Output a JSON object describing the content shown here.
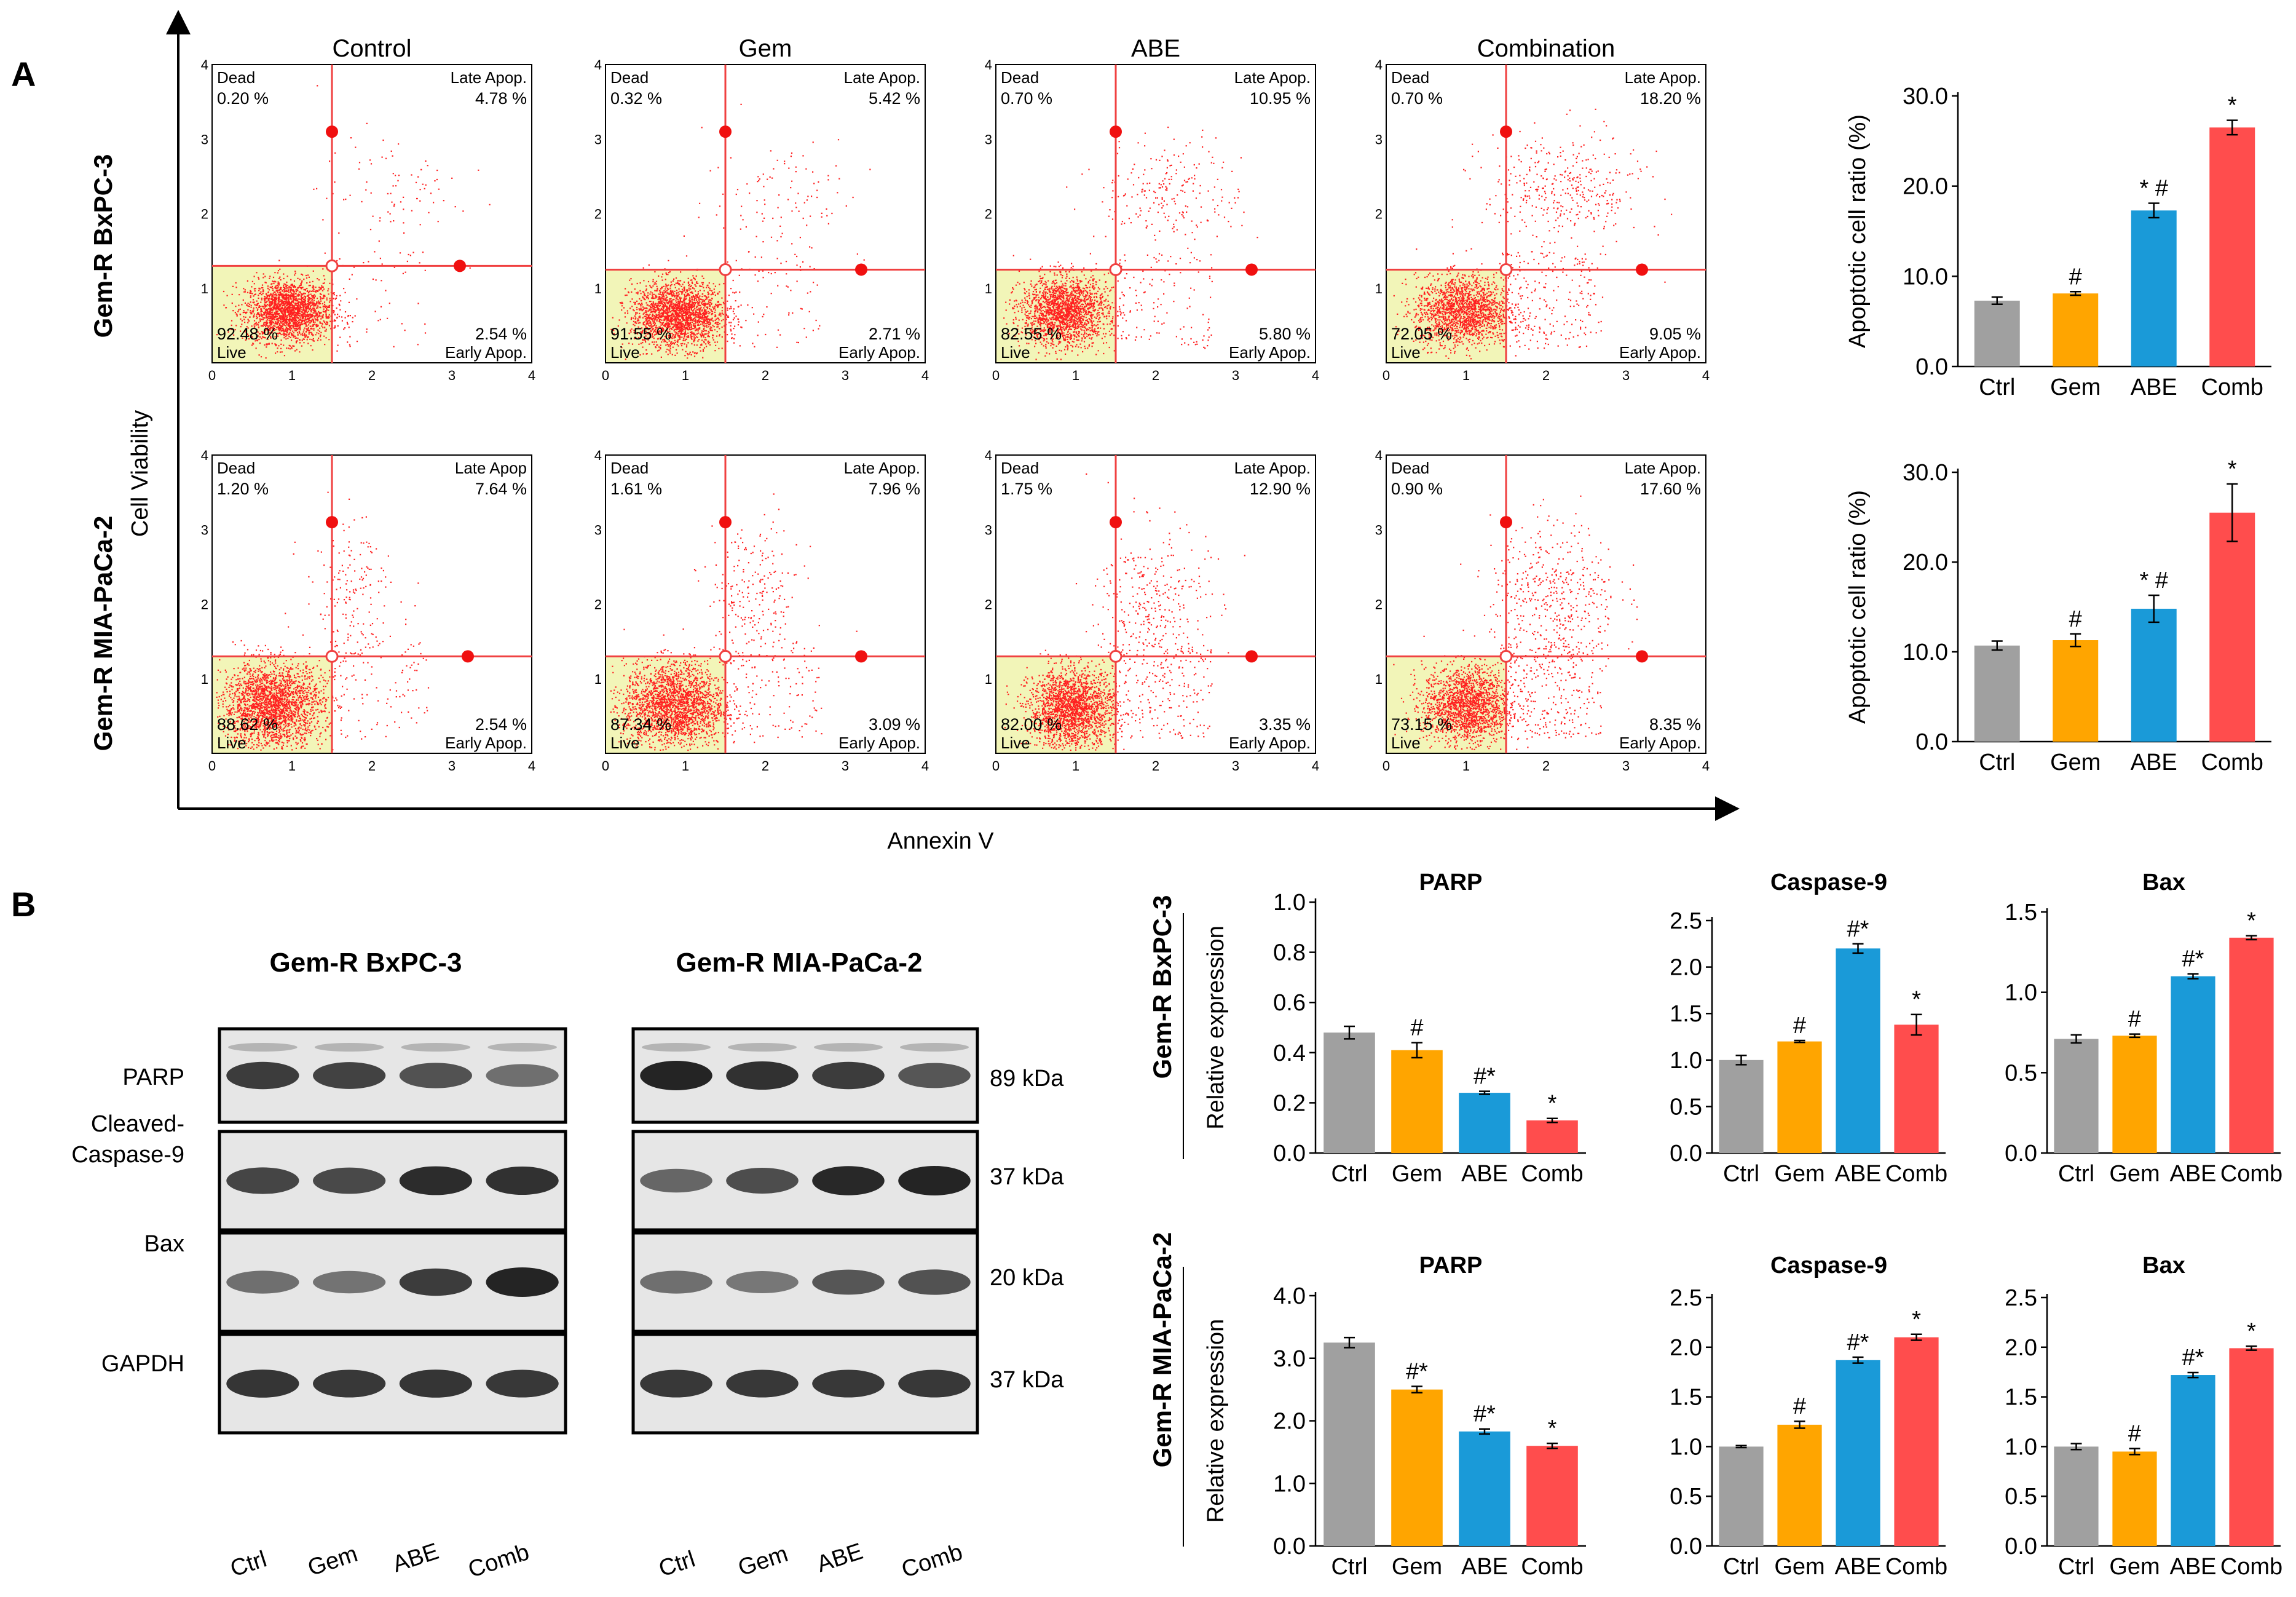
{
  "panel_a": {
    "letter": "A",
    "y_axis_label": "Cell Viability",
    "x_axis_label": "Annexin V",
    "row_labels": [
      "Gem-R BxPC-3",
      "Gem-R MIA-PaCa-2"
    ],
    "treatments": [
      "Control",
      "Gem",
      "ABE",
      "Combination"
    ],
    "axis_ticks": [
      "0",
      "1",
      "2",
      "3",
      "4"
    ],
    "quadrant_names": {
      "dead": "Dead",
      "late": "Late Apop.",
      "late_alt": "Late Apop",
      "live": "Live",
      "early": "Early Apop."
    },
    "color_points": "#ff2020",
    "color_live_gate": "#f2f5b8"
  },
  "panel_b": {
    "letter": "B",
    "blot_groups": [
      "Gem-R BxPC-3",
      "Gem-R MIA-PaCa-2"
    ],
    "proteins": [
      "PARP",
      "Cleaved-",
      "Caspase-9",
      "Bax",
      "GAPDH"
    ],
    "kda": [
      "89 kDa",
      "37 kDa",
      "20 kDa",
      "37 kDa"
    ],
    "lanes": [
      "Ctrl",
      "Gem",
      "ABE",
      "Comb"
    ],
    "band_intensity": {
      "left": [
        [
          0.85,
          0.82,
          0.72,
          0.55
        ],
        [
          0.8,
          0.78,
          0.95,
          0.92
        ],
        [
          0.55,
          0.52,
          0.85,
          1.0
        ],
        [
          0.9,
          0.88,
          0.9,
          0.88
        ]
      ],
      "right": [
        [
          1.0,
          0.92,
          0.85,
          0.7
        ],
        [
          0.6,
          0.75,
          0.98,
          1.0
        ],
        [
          0.55,
          0.5,
          0.7,
          0.72
        ],
        [
          0.88,
          0.88,
          0.88,
          0.88
        ]
      ]
    },
    "row_labels": [
      "Gem-R BxPC-3",
      "Gem-R MIA-PaCa-2"
    ]
  },
  "chart_data": [
    {
      "type": "scatter",
      "title": "Control",
      "cell_line": "Gem-R BxPC-3",
      "xlabel": "Annexin V",
      "ylabel": "Cell Viability",
      "xlim": [
        0,
        4
      ],
      "ylim": [
        0,
        4
      ],
      "quadrants": {
        "dead": "0.20 %",
        "late": "4.78 %",
        "live": "92.48 %",
        "early": "2.54 %"
      },
      "gate": [
        1.5,
        1.3
      ],
      "handles": [
        [
          1.5,
          3.1
        ],
        [
          3.1,
          1.3
        ]
      ],
      "cluster": [
        0.95,
        0.7,
        2100,
        0.6,
        0.16
      ],
      "scatter_up": [
        2.2,
        2.3,
        0.45,
        0.4
      ],
      "scatter_upcount": 90
    },
    {
      "type": "scatter",
      "title": "Gem",
      "cell_line": "Gem-R BxPC-3",
      "xlabel": "Annexin V",
      "ylabel": "Cell Viability",
      "xlim": [
        0,
        4
      ],
      "ylim": [
        0,
        4
      ],
      "quadrants": {
        "dead": "0.32 %",
        "late": "5.42 %",
        "live": "91.55 %",
        "early": "2.71 %"
      },
      "gate": [
        1.5,
        1.25
      ],
      "handles": [
        [
          1.5,
          3.1
        ],
        [
          3.2,
          1.25
        ]
      ],
      "cluster": [
        0.9,
        0.65,
        2100,
        0.65,
        0.17
      ],
      "scatter_up": [
        2.25,
        2.2,
        0.5,
        0.45
      ],
      "scatter_upcount": 110
    },
    {
      "type": "scatter",
      "title": "ABE",
      "cell_line": "Gem-R BxPC-3",
      "xlabel": "Annexin V",
      "ylabel": "Cell Viability",
      "xlim": [
        0,
        4
      ],
      "ylim": [
        0,
        4
      ],
      "quadrants": {
        "dead": "0.70 %",
        "late": "10.95 %",
        "live": "82.55 %",
        "early": "5.80 %"
      },
      "gate": [
        1.5,
        1.25
      ],
      "handles": [
        [
          1.5,
          3.1
        ],
        [
          3.2,
          1.25
        ]
      ],
      "cluster": [
        0.85,
        0.7,
        1900,
        0.6,
        0.18
      ],
      "scatter_up": [
        2.2,
        2.3,
        0.45,
        0.35
      ],
      "scatter_upcount": 220
    },
    {
      "type": "scatter",
      "title": "Combination",
      "cell_line": "Gem-R BxPC-3",
      "xlabel": "Annexin V",
      "ylabel": "Cell Viability",
      "xlim": [
        0,
        4
      ],
      "ylim": [
        0,
        4
      ],
      "quadrants": {
        "dead": "0.70 %",
        "late": "18.20 %",
        "live": "72.05 %",
        "early": "9.05 %"
      },
      "gate": [
        1.5,
        1.25
      ],
      "handles": [
        [
          1.5,
          3.1
        ],
        [
          3.2,
          1.25
        ]
      ],
      "cluster": [
        0.95,
        0.7,
        1700,
        0.65,
        0.18
      ],
      "scatter_up": [
        2.2,
        2.3,
        0.5,
        0.4
      ],
      "scatter_upcount": 380
    },
    {
      "type": "scatter",
      "title": "Control",
      "cell_line": "Gem-R MIA-PaCa-2",
      "xlabel": "Annexin V",
      "ylabel": "Cell Viability",
      "xlim": [
        0,
        4
      ],
      "ylim": [
        0,
        4
      ],
      "quadrants": {
        "dead": "1.20 %",
        "late": "7.64 %",
        "live": "88.62 %",
        "early": "2.54 %"
      },
      "gate": [
        1.5,
        1.3
      ],
      "handles": [
        [
          1.5,
          3.1
        ],
        [
          3.2,
          1.3
        ]
      ],
      "cluster": [
        0.75,
        0.65,
        2300,
        0.7,
        0.22
      ],
      "scatter_up": [
        1.75,
        2.1,
        0.3,
        0.55
      ],
      "scatter_upcount": 180
    },
    {
      "type": "scatter",
      "title": "Gem",
      "cell_line": "Gem-R MIA-PaCa-2",
      "xlabel": "Annexin V",
      "ylabel": "Cell Viability",
      "xlim": [
        0,
        4
      ],
      "ylim": [
        0,
        4
      ],
      "quadrants": {
        "dead": "1.61 %",
        "late": "7.96 %",
        "live": "87.34 %",
        "early": "3.09 %"
      },
      "gate": [
        1.5,
        1.3
      ],
      "handles": [
        [
          1.5,
          3.1
        ],
        [
          3.2,
          1.3
        ]
      ],
      "cluster": [
        0.85,
        0.65,
        2200,
        0.7,
        0.22
      ],
      "scatter_up": [
        1.85,
        2.1,
        0.3,
        0.5
      ],
      "scatter_upcount": 220
    },
    {
      "type": "scatter",
      "title": "ABE",
      "cell_line": "Gem-R MIA-PaCa-2",
      "xlabel": "Annexin V",
      "ylabel": "Cell Viability",
      "xlim": [
        0,
        4
      ],
      "ylim": [
        0,
        4
      ],
      "quadrants": {
        "dead": "1.75 %",
        "late": "12.90 %",
        "live": "82.00 %",
        "early": "3.35 %"
      },
      "gate": [
        1.5,
        1.3
      ],
      "handles": [
        [
          1.5,
          3.1
        ],
        [
          3.2,
          1.3
        ]
      ],
      "cluster": [
        0.95,
        0.6,
        2000,
        0.6,
        0.2
      ],
      "scatter_up": [
        1.95,
        2.0,
        0.35,
        0.55
      ],
      "scatter_upcount": 330
    },
    {
      "type": "scatter",
      "title": "Combination",
      "cell_line": "Gem-R MIA-PaCa-2",
      "xlabel": "Annexin V",
      "ylabel": "Cell Viability",
      "xlim": [
        0,
        4
      ],
      "ylim": [
        0,
        4
      ],
      "quadrants": {
        "dead": "0.90 %",
        "late": "17.60 %",
        "live": "73.15 %",
        "early": "8.35 %"
      },
      "gate": [
        1.5,
        1.3
      ],
      "handles": [
        [
          1.5,
          3.1
        ],
        [
          3.2,
          1.3
        ]
      ],
      "cluster": [
        1.0,
        0.65,
        1800,
        0.6,
        0.2
      ],
      "scatter_up": [
        2.1,
        2.1,
        0.4,
        0.5
      ],
      "scatter_upcount": 460
    },
    {
      "type": "bar",
      "cell_line": "Gem-R BxPC-3",
      "title": "",
      "ylabel": "Apoptotic cell ratio (%)",
      "categories": [
        "Ctrl",
        "Gem",
        "ABE",
        "Comb"
      ],
      "values": [
        7.3,
        8.1,
        17.3,
        26.5
      ],
      "errors": [
        0.4,
        0.2,
        0.8,
        0.8
      ],
      "significance": [
        "",
        "#",
        "* #",
        "*"
      ],
      "ylim": [
        0,
        30
      ],
      "yticks": [
        "0.0",
        "10.0",
        "20.0",
        "30.0"
      ],
      "ytick_values": [
        0,
        10,
        20,
        30
      ]
    },
    {
      "type": "bar",
      "cell_line": "Gem-R MIA-PaCa-2",
      "title": "",
      "ylabel": "Apoptotic cell ratio (%)",
      "categories": [
        "Ctrl",
        "Gem",
        "ABE",
        "Comb"
      ],
      "values": [
        10.7,
        11.3,
        14.8,
        25.5
      ],
      "errors": [
        0.5,
        0.7,
        1.5,
        3.2
      ],
      "significance": [
        "",
        "#",
        "* #",
        "*"
      ],
      "ylim": [
        0,
        30
      ],
      "yticks": [
        "0.0",
        "10.0",
        "20.0",
        "30.0"
      ],
      "ytick_values": [
        0,
        10,
        20,
        30
      ]
    },
    {
      "type": "bar",
      "cell_line": "Gem-R BxPC-3",
      "title": "PARP",
      "ylabel": "Relative expression",
      "categories": [
        "Ctrl",
        "Gem",
        "ABE",
        "Comb"
      ],
      "values": [
        0.48,
        0.41,
        0.24,
        0.13
      ],
      "errors": [
        0.025,
        0.03,
        0.006,
        0.008
      ],
      "significance": [
        "",
        "#",
        "#*",
        "*"
      ],
      "ylim": [
        0,
        1.0
      ],
      "yticks": [
        "0.0",
        "0.2",
        "0.4",
        "0.6",
        "0.8",
        "1.0"
      ],
      "ytick_values": [
        0,
        0.2,
        0.4,
        0.6,
        0.8,
        1.0
      ]
    },
    {
      "type": "bar",
      "cell_line": "Gem-R BxPC-3",
      "title": "Caspase-9",
      "ylabel": "",
      "categories": [
        "Ctrl",
        "Gem",
        "ABE",
        "Comb"
      ],
      "values": [
        1.0,
        1.2,
        2.2,
        1.38
      ],
      "errors": [
        0.05,
        0.01,
        0.05,
        0.11
      ],
      "significance": [
        "",
        "#",
        "#*",
        "*"
      ],
      "ylim": [
        0,
        2.5
      ],
      "yticks": [
        "0.0",
        "0.5",
        "1.0",
        "1.5",
        "2.0",
        "2.5"
      ],
      "ytick_values": [
        0,
        0.5,
        1.0,
        1.5,
        2.0,
        2.5
      ]
    },
    {
      "type": "bar",
      "cell_line": "Gem-R BxPC-3",
      "title": "Bax",
      "ylabel": "",
      "categories": [
        "Ctrl",
        "Gem",
        "ABE",
        "Comb"
      ],
      "values": [
        0.71,
        0.73,
        1.1,
        1.34
      ],
      "errors": [
        0.025,
        0.01,
        0.015,
        0.012
      ],
      "significance": [
        "",
        "#",
        "#*",
        "*"
      ],
      "ylim": [
        0,
        1.5
      ],
      "yticks": [
        "0.0",
        "0.5",
        "1.0",
        "1.5"
      ],
      "ytick_values": [
        0,
        0.5,
        1.0,
        1.5
      ]
    },
    {
      "type": "bar",
      "cell_line": "Gem-R MIA-PaCa-2",
      "title": "PARP",
      "ylabel": "Relative expression",
      "categories": [
        "Ctrl",
        "Gem",
        "ABE",
        "Comb"
      ],
      "values": [
        3.25,
        2.5,
        1.83,
        1.6
      ],
      "errors": [
        0.08,
        0.05,
        0.04,
        0.04
      ],
      "significance": [
        "",
        "#*",
        "#*",
        "*"
      ],
      "ylim": [
        0,
        4.0
      ],
      "yticks": [
        "0.0",
        "1.0",
        "2.0",
        "3.0",
        "4.0"
      ],
      "ytick_values": [
        0,
        1.0,
        2.0,
        3.0,
        4.0
      ]
    },
    {
      "type": "bar",
      "cell_line": "Gem-R MIA-PaCa-2",
      "title": "Caspase-9",
      "ylabel": "",
      "categories": [
        "Ctrl",
        "Gem",
        "ABE",
        "Comb"
      ],
      "values": [
        1.0,
        1.22,
        1.87,
        2.1
      ],
      "errors": [
        0.01,
        0.035,
        0.03,
        0.03
      ],
      "significance": [
        "",
        "#",
        "#*",
        "*"
      ],
      "ylim": [
        0,
        2.5
      ],
      "yticks": [
        "0.0",
        "0.5",
        "1.0",
        "1.5",
        "2.0",
        "2.5"
      ],
      "ytick_values": [
        0,
        0.5,
        1.0,
        1.5,
        2.0,
        2.5
      ]
    },
    {
      "type": "bar",
      "cell_line": "Gem-R MIA-PaCa-2",
      "title": "Bax",
      "ylabel": "",
      "categories": [
        "Ctrl",
        "Gem",
        "ABE",
        "Comb"
      ],
      "values": [
        1.0,
        0.95,
        1.72,
        1.99
      ],
      "errors": [
        0.03,
        0.03,
        0.025,
        0.02
      ],
      "significance": [
        "",
        "#",
        "#*",
        "*"
      ],
      "ylim": [
        0,
        2.5
      ],
      "yticks": [
        "0.0",
        "0.5",
        "1.0",
        "1.5",
        "2.0",
        "2.5"
      ],
      "ytick_values": [
        0,
        0.5,
        1.0,
        1.5,
        2.0,
        2.5
      ]
    }
  ],
  "bar_colors": [
    "#a0a0a0",
    "#ffa500",
    "#1a9ad8",
    "#ff4d4d"
  ]
}
